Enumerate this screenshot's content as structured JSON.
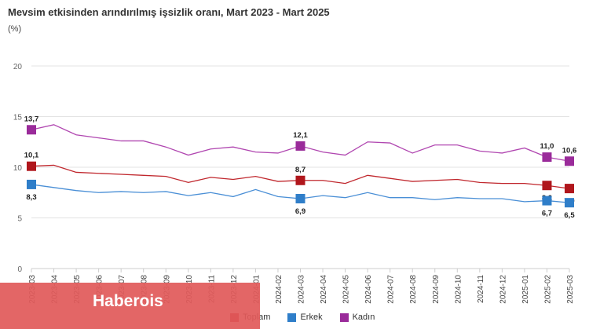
{
  "chart_data": {
    "type": "line",
    "title": "Mevsim etkisinden arındırılmış işsizlik oranı, Mart 2023 - Mart 2025",
    "subtitle": "(%)",
    "ylim": [
      0,
      20
    ],
    "yticks": [
      "0",
      "5",
      "10",
      "15",
      "20"
    ],
    "grid": true,
    "legend_position": "bottom",
    "categories": [
      "2023-03",
      "2023-04",
      "2023-05",
      "2023-06",
      "2023-07",
      "2023-08",
      "2023-09",
      "2023-10",
      "2023-11",
      "2023-12",
      "2024-01",
      "2024-02",
      "2024-03",
      "2024-04",
      "2024-05",
      "2024-06",
      "2024-07",
      "2024-08",
      "2024-09",
      "2024-10",
      "2024-11",
      "2024-12",
      "2025-01",
      "2025-02",
      "2025-03"
    ],
    "series": [
      {
        "name": "Toplam",
        "color": "#c0272d",
        "marker_color": "#b0161c",
        "values": [
          10.1,
          10.2,
          9.5,
          9.4,
          9.3,
          9.2,
          9.1,
          8.5,
          9.0,
          8.8,
          9.1,
          8.6,
          8.7,
          8.7,
          8.4,
          9.2,
          8.9,
          8.6,
          8.7,
          8.8,
          8.5,
          8.4,
          8.4,
          8.2,
          7.9
        ],
        "labels": {
          "0": "10,1",
          "12": "8,7",
          "23": "8,2",
          "24": "7,9"
        },
        "label_pos": {
          "0": "above",
          "12": "above",
          "23": "below",
          "24": "below"
        }
      },
      {
        "name": "Erkek",
        "color": "#4a8fd6",
        "marker_color": "#2f7ec9",
        "values": [
          8.3,
          8.0,
          7.7,
          7.5,
          7.6,
          7.5,
          7.6,
          7.2,
          7.5,
          7.1,
          7.8,
          7.1,
          6.9,
          7.2,
          7.0,
          7.5,
          7.0,
          7.0,
          6.8,
          7.0,
          6.9,
          6.9,
          6.6,
          6.7,
          6.5
        ],
        "labels": {
          "0": "8,3",
          "12": "6,9",
          "23": "6,7",
          "24": "6,5"
        },
        "label_pos": {
          "0": "below",
          "12": "below",
          "23": "below",
          "24": "below"
        }
      },
      {
        "name": "Kadın",
        "color": "#b046b0",
        "marker_color": "#9a2b9a",
        "values": [
          13.7,
          14.2,
          13.2,
          12.9,
          12.6,
          12.6,
          12.0,
          11.2,
          11.8,
          12.0,
          11.5,
          11.4,
          12.1,
          11.5,
          11.2,
          12.5,
          12.4,
          11.4,
          12.2,
          12.2,
          11.6,
          11.4,
          11.9,
          11.0,
          10.6
        ],
        "labels": {
          "0": "13,7",
          "12": "12,1",
          "23": "11,0",
          "24": "10,6"
        },
        "label_pos": {
          "0": "above",
          "12": "above",
          "23": "above",
          "24": "above"
        }
      }
    ],
    "marker_indices": [
      0,
      12,
      23,
      24
    ]
  },
  "legend": {
    "items": [
      {
        "label": "Toplam",
        "color": "#c0272d"
      },
      {
        "label": "Erkek",
        "color": "#2f7ec9"
      },
      {
        "label": "Kadın",
        "color": "#9a2b9a"
      }
    ]
  },
  "watermark": {
    "text": "Haberois",
    "color": "#e15a5a"
  }
}
